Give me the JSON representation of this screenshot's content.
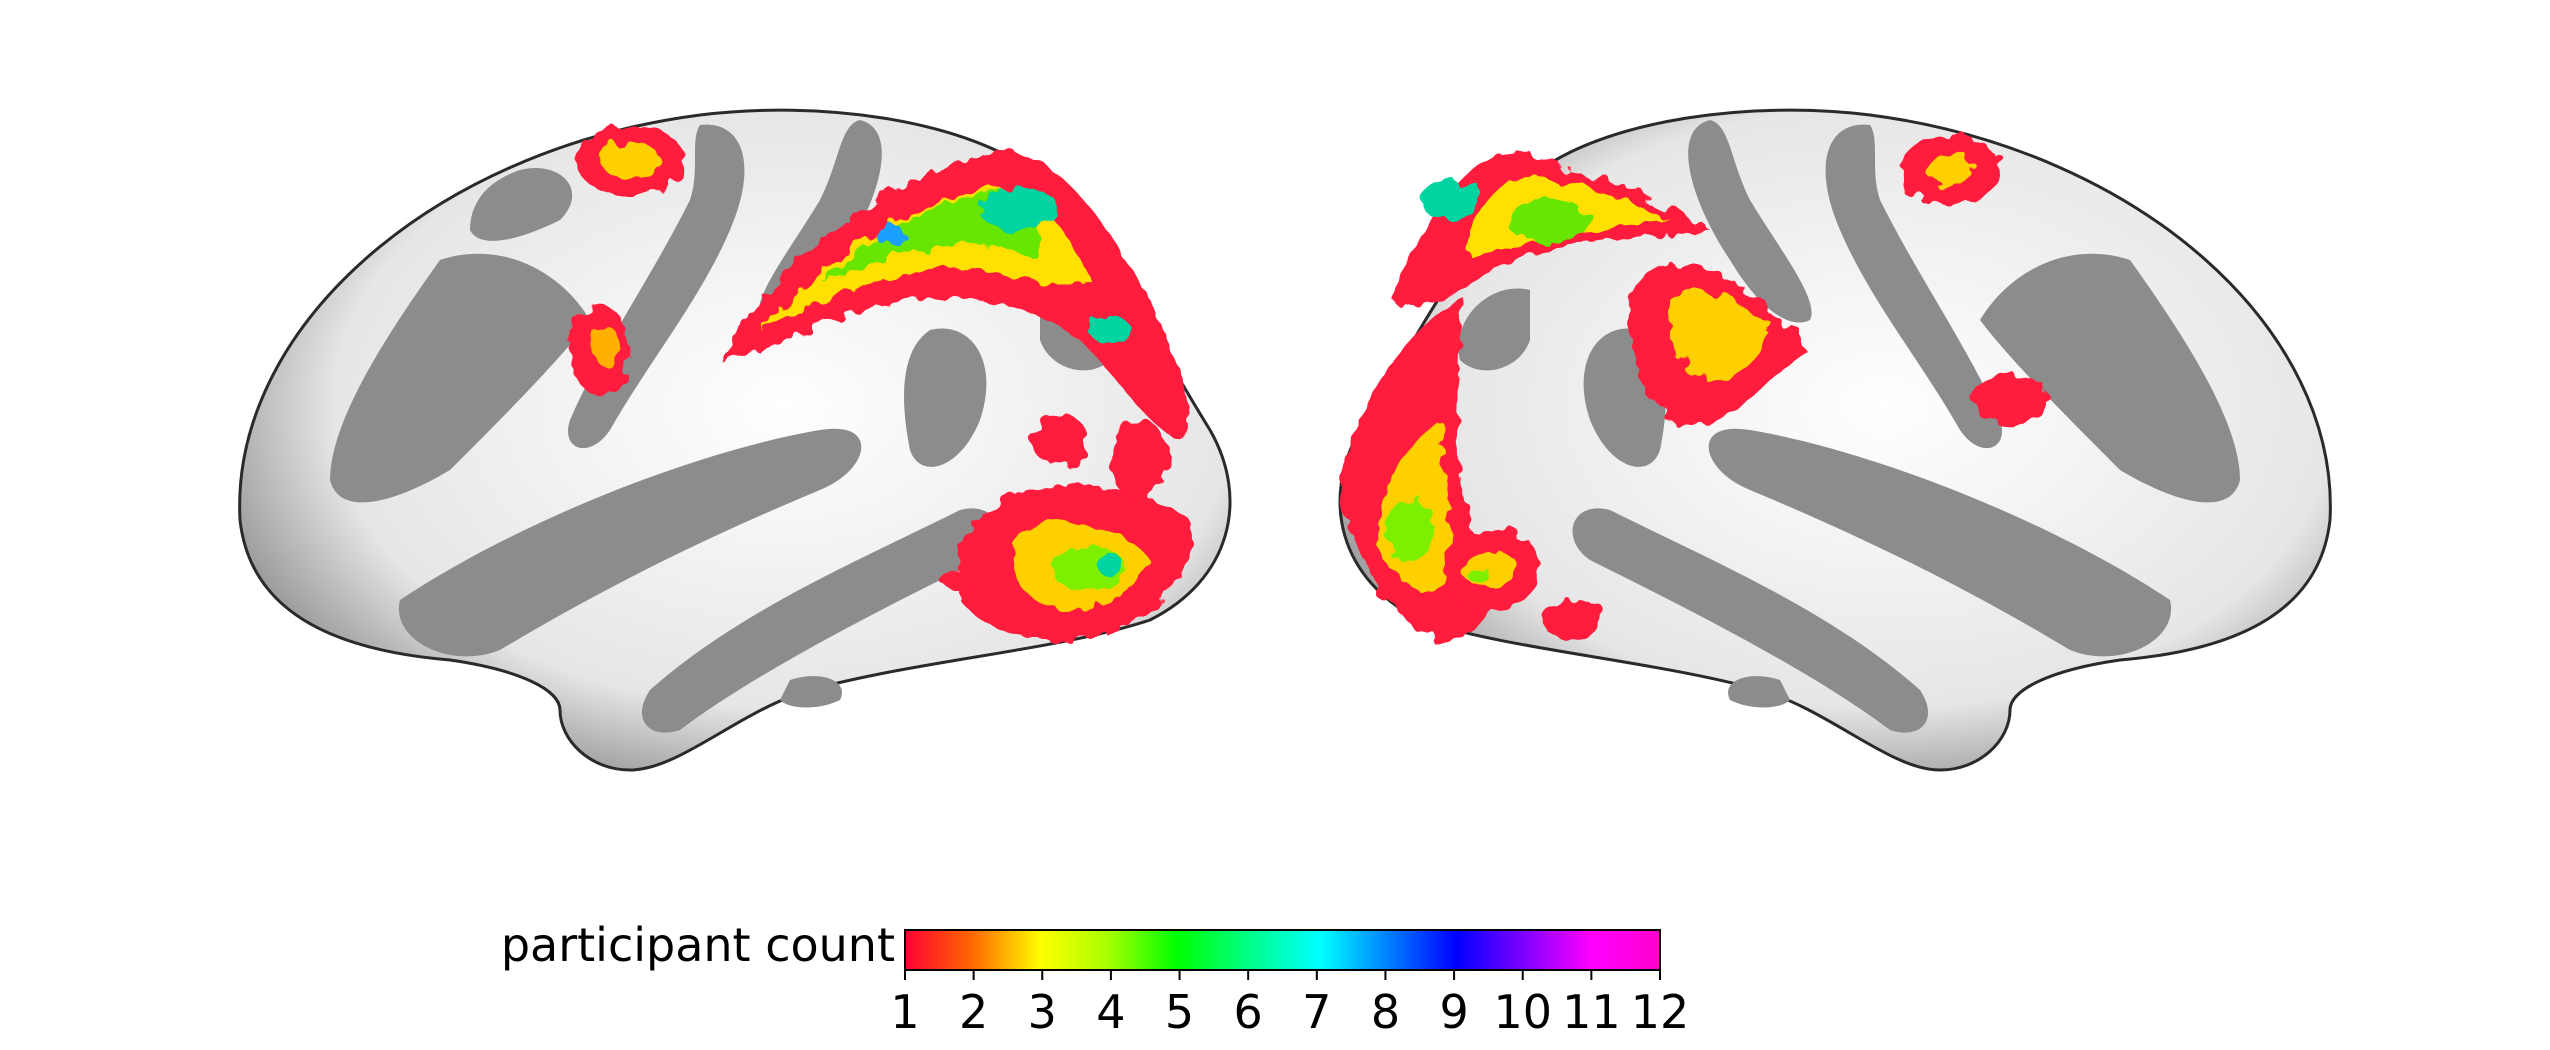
{
  "figure": {
    "panels": [
      {
        "view": "left hemisphere, lateral inflated surface"
      },
      {
        "view": "right hemisphere, lateral inflated surface"
      }
    ]
  },
  "colorbar": {
    "label": "participant count",
    "ticks": [
      "1",
      "2",
      "3",
      "4",
      "5",
      "6",
      "7",
      "8",
      "9",
      "10",
      "11",
      "12"
    ],
    "min": 1,
    "max": 12,
    "colors": [
      "#ff0033",
      "#ff6a00",
      "#ffff00",
      "#a6ff00",
      "#00ff00",
      "#00ff80",
      "#00ffff",
      "#0080ff",
      "#0000ff",
      "#8000ff",
      "#ff00ff",
      "#ff00cc"
    ]
  },
  "colors": {
    "sulcus": "#8c8c8c",
    "gyrus": "#f2f2f2",
    "outline": "#2a2a2a"
  }
}
